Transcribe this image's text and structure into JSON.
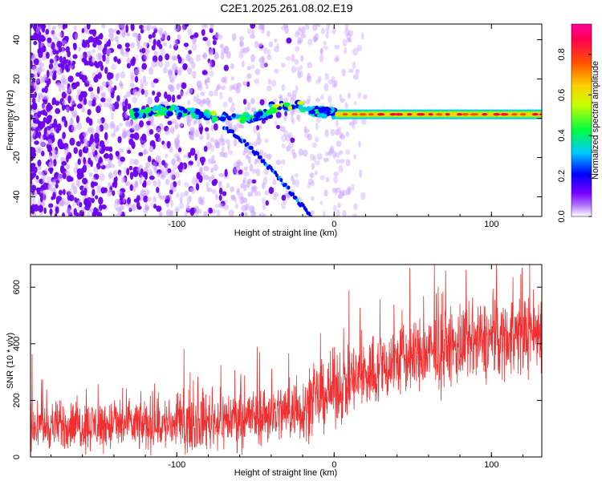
{
  "title": "C2E1.2025.261.08.02.E19",
  "chart_data": [
    {
      "type": "heatmap",
      "xlabel": "Height of straight line (km)",
      "ylabel": "Frequency (Hz)",
      "xlim": [
        -193,
        132
      ],
      "ylim": [
        -50,
        48
      ],
      "xticks": [
        -100,
        0,
        100
      ],
      "xtick_labels": [
        "-100",
        "0",
        "100"
      ],
      "yticks": [
        -40,
        -20,
        0,
        20,
        40
      ],
      "ytick_labels": [
        "-40",
        "-20",
        "0",
        "20",
        "40"
      ],
      "colorbar": {
        "label": "Normalized spectral amplitude",
        "range": [
          0,
          0.95
        ],
        "ticks": [
          0,
          0.2,
          0.4,
          0.6,
          0.8
        ],
        "tick_labels": [
          "0.0",
          "0.2",
          "0.4",
          "0.6",
          "0.8"
        ],
        "colors": [
          "#ffffff",
          "#7a00ff",
          "#0000ff",
          "#00c8ff",
          "#00ff40",
          "#c8ff00",
          "#ffd000",
          "#ff5000",
          "#ff0050",
          "#ff0099"
        ]
      },
      "features": [
        {
          "name": "carrier line",
          "x_start": -130,
          "x_end": 132,
          "frequency_hz": 2,
          "amplitude_range": [
            0.3,
            0.95
          ]
        },
        {
          "name": "descending trace",
          "x_start": -70,
          "x_end": -15,
          "frequency_start_hz": -5,
          "frequency_end_hz": -50
        },
        {
          "name": "background noise",
          "x_start": -193,
          "x_end": 0,
          "amplitude_range": [
            0,
            0.15
          ]
        }
      ]
    },
    {
      "type": "line",
      "xlabel": "Height of straight line (km)",
      "ylabel": "SNR (10 * v/v)",
      "xlim": [
        -193,
        132
      ],
      "ylim": [
        0,
        680
      ],
      "xticks": [
        -100,
        0,
        100
      ],
      "xtick_labels": [
        "-100",
        "0",
        "100"
      ],
      "yticks": [
        0,
        200,
        400,
        600
      ],
      "ytick_labels": [
        "0",
        "200",
        "400",
        "600"
      ],
      "series": [
        {
          "name": "SNR",
          "color": "#f03030",
          "trend_x": [
            -193,
            -100,
            -50,
            -20,
            0,
            40,
            80,
            132
          ],
          "trend_mean": [
            110,
            115,
            145,
            170,
            240,
            340,
            390,
            450
          ],
          "spread": [
            [
              -193,
              90
            ],
            [
              -20,
              120
            ],
            [
              0,
              140
            ],
            [
              132,
              160
            ]
          ]
        }
      ]
    }
  ]
}
